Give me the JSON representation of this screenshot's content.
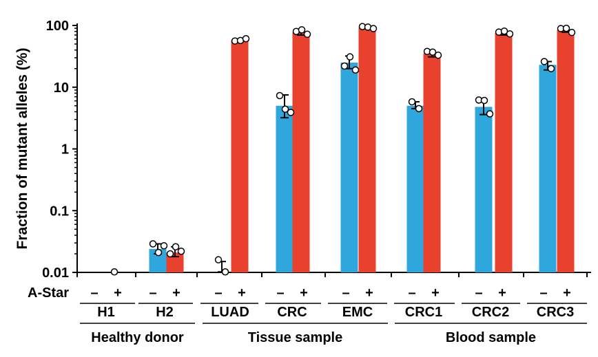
{
  "chart_data": {
    "type": "bar",
    "ylabel": "Fraction of mutant alleles (%)",
    "yscale": "log",
    "ylim": [
      0.01,
      100
    ],
    "yticks": [
      "0.01",
      "0.1",
      "1",
      "10",
      "100"
    ],
    "ytick_values": [
      0.01,
      0.1,
      1,
      10,
      100
    ],
    "row_label": "A-Star",
    "conditions": [
      "–",
      "+"
    ],
    "colors": {
      "minus": "#2fa6dc",
      "plus": "#e8412e",
      "axis": "#000000"
    },
    "categories": [
      "H1",
      "H2",
      "LUAD",
      "CRC",
      "EMC",
      "CRC1",
      "CRC2",
      "CRC3"
    ],
    "groups": [
      {
        "name": "Healthy donor",
        "categories": [
          "H1",
          "H2"
        ]
      },
      {
        "name": "Tissue sample",
        "categories": [
          "LUAD",
          "CRC",
          "EMC"
        ]
      },
      {
        "name": "Blood sample",
        "categories": [
          "CRC1",
          "CRC2",
          "CRC3"
        ]
      }
    ],
    "bars": [
      {
        "category": "H1",
        "condition": "–",
        "value": null,
        "err_low": null,
        "err_high": null,
        "points": []
      },
      {
        "category": "H1",
        "condition": "+",
        "value": null,
        "err_low": null,
        "err_high": null,
        "points": [
          0.0102
        ]
      },
      {
        "category": "H2",
        "condition": "–",
        "value": 0.024,
        "err_low": 0.02,
        "err_high": 0.029,
        "points": [
          0.029,
          0.021,
          0.027
        ]
      },
      {
        "category": "H2",
        "condition": "+",
        "value": 0.021,
        "err_low": 0.018,
        "err_high": 0.026,
        "points": [
          0.02,
          0.026,
          0.022
        ]
      },
      {
        "category": "LUAD",
        "condition": "–",
        "value": null,
        "err_low": 0.0102,
        "err_high": 0.015,
        "points": [
          0.016,
          0.0102
        ]
      },
      {
        "category": "LUAD",
        "condition": "+",
        "value": 57,
        "err_low": 55,
        "err_high": 60,
        "points": [
          56,
          57,
          61
        ]
      },
      {
        "category": "CRC",
        "condition": "–",
        "value": 5.0,
        "err_low": 3.2,
        "err_high": 7.5,
        "points": [
          7.3,
          4.4,
          3.9
        ]
      },
      {
        "category": "CRC",
        "condition": "+",
        "value": 77,
        "err_low": 70,
        "err_high": 85,
        "points": [
          80,
          85,
          72
        ]
      },
      {
        "category": "EMC",
        "condition": "–",
        "value": 25,
        "err_low": 20,
        "err_high": 32,
        "points": [
          22,
          31,
          19
        ]
      },
      {
        "category": "EMC",
        "condition": "+",
        "value": 93,
        "err_low": 88,
        "err_high": 97,
        "points": [
          96,
          94,
          89
        ]
      },
      {
        "category": "CRC1",
        "condition": "–",
        "value": 5.0,
        "err_low": 4.5,
        "err_high": 5.8,
        "points": [
          5.8,
          4.5
        ]
      },
      {
        "category": "CRC1",
        "condition": "+",
        "value": 35,
        "err_low": 31,
        "err_high": 38,
        "points": [
          38,
          37,
          33
        ]
      },
      {
        "category": "CRC2",
        "condition": "–",
        "value": 4.8,
        "err_low": 3.6,
        "err_high": 6.2,
        "points": [
          6.2,
          6.1,
          3.7
        ]
      },
      {
        "category": "CRC2",
        "condition": "+",
        "value": 75,
        "err_low": 70,
        "err_high": 80,
        "points": [
          78,
          81,
          73
        ]
      },
      {
        "category": "CRC3",
        "condition": "–",
        "value": 23,
        "err_low": 19,
        "err_high": 26,
        "points": [
          26,
          20
        ]
      },
      {
        "category": "CRC3",
        "condition": "+",
        "value": 85,
        "err_low": 78,
        "err_high": 90,
        "points": [
          89,
          90,
          77
        ]
      }
    ]
  }
}
